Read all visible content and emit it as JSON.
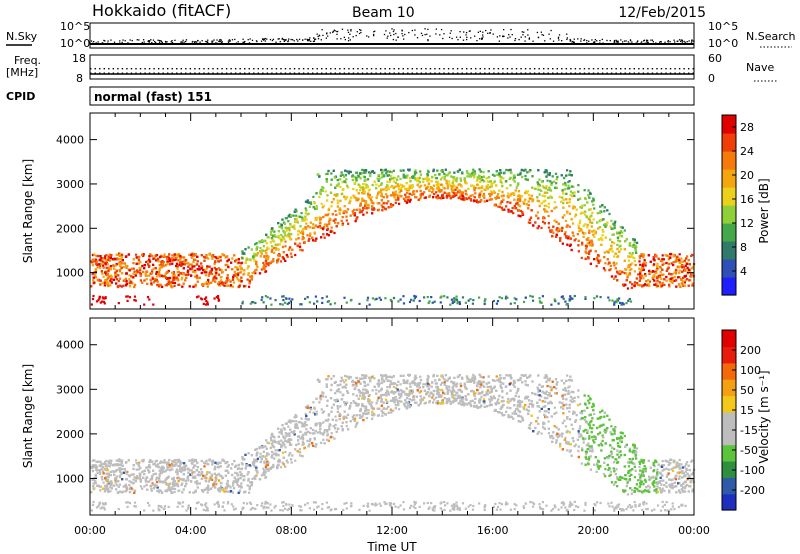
{
  "header": {
    "site": "Hokkaido (fitACF)",
    "beam": "Beam 10",
    "date": "12/Feb/2015"
  },
  "strip": {
    "nsky_label": "N.Sky",
    "nsky_ticks": [
      "10^5",
      "10^0"
    ],
    "nsearch_label": "N.Search",
    "freq_label": "Freq.",
    "freq_unit": "[MHz]",
    "freq_ticks": [
      "18",
      "8"
    ],
    "nave_label": "Nave",
    "nave_ticks": [
      "60",
      "0"
    ],
    "cpid_label": "CPID",
    "cpid_value": "normal (fast) 151"
  },
  "chart_data": [
    {
      "type": "heatmap",
      "name": "power-panel",
      "ylabel": "Slant Range [km]",
      "yticks": [
        1000,
        2000,
        3000,
        4000
      ],
      "ylim": [
        180,
        4600
      ],
      "xlabel": "Time UT",
      "xticks": [
        "00:00",
        "04:00",
        "08:00",
        "12:00",
        "16:00",
        "20:00",
        "00:00"
      ],
      "xlim_hours": [
        0,
        24
      ],
      "colorbar": {
        "label": "Power [dB]",
        "ticks": [
          "4",
          "8",
          "12",
          "16",
          "20",
          "24",
          "28"
        ],
        "colors": [
          "#1e1eff",
          "#2e4fb5",
          "#2f7a6a",
          "#44a84a",
          "#8fd03a",
          "#ecd11a",
          "#f5a50d",
          "#f67a0a",
          "#ef3e08",
          "#e00000"
        ]
      },
      "features": {
        "near_range_band_km": [
          700,
          1450
        ],
        "near_range_hours": [
          0,
          6
        ],
        "far_range_top_km": 3350,
        "far_range_hours": [
          9,
          20
        ]
      }
    },
    {
      "type": "heatmap",
      "name": "velocity-panel",
      "ylabel": "Slant Range [km]",
      "yticks": [
        1000,
        2000,
        3000,
        4000
      ],
      "ylim": [
        180,
        4600
      ],
      "xlabel": "Time UT",
      "xticks": [
        "00:00",
        "04:00",
        "08:00",
        "12:00",
        "16:00",
        "20:00",
        "00:00"
      ],
      "xlim_hours": [
        0,
        24
      ],
      "colorbar": {
        "label": "Velocity [m s⁻¹]",
        "ticks": [
          "200",
          "100",
          "50",
          "15",
          "-15",
          "-50",
          "-100",
          "-200"
        ],
        "colors": [
          "#1e2fc0",
          "#2e5aa8",
          "#2f8f3f",
          "#5cc43c",
          "#bdbdbd",
          "#bdbdbd",
          "#f2c81a",
          "#f5a010",
          "#f46a0a",
          "#e81c0a",
          "#e00000"
        ]
      }
    }
  ]
}
